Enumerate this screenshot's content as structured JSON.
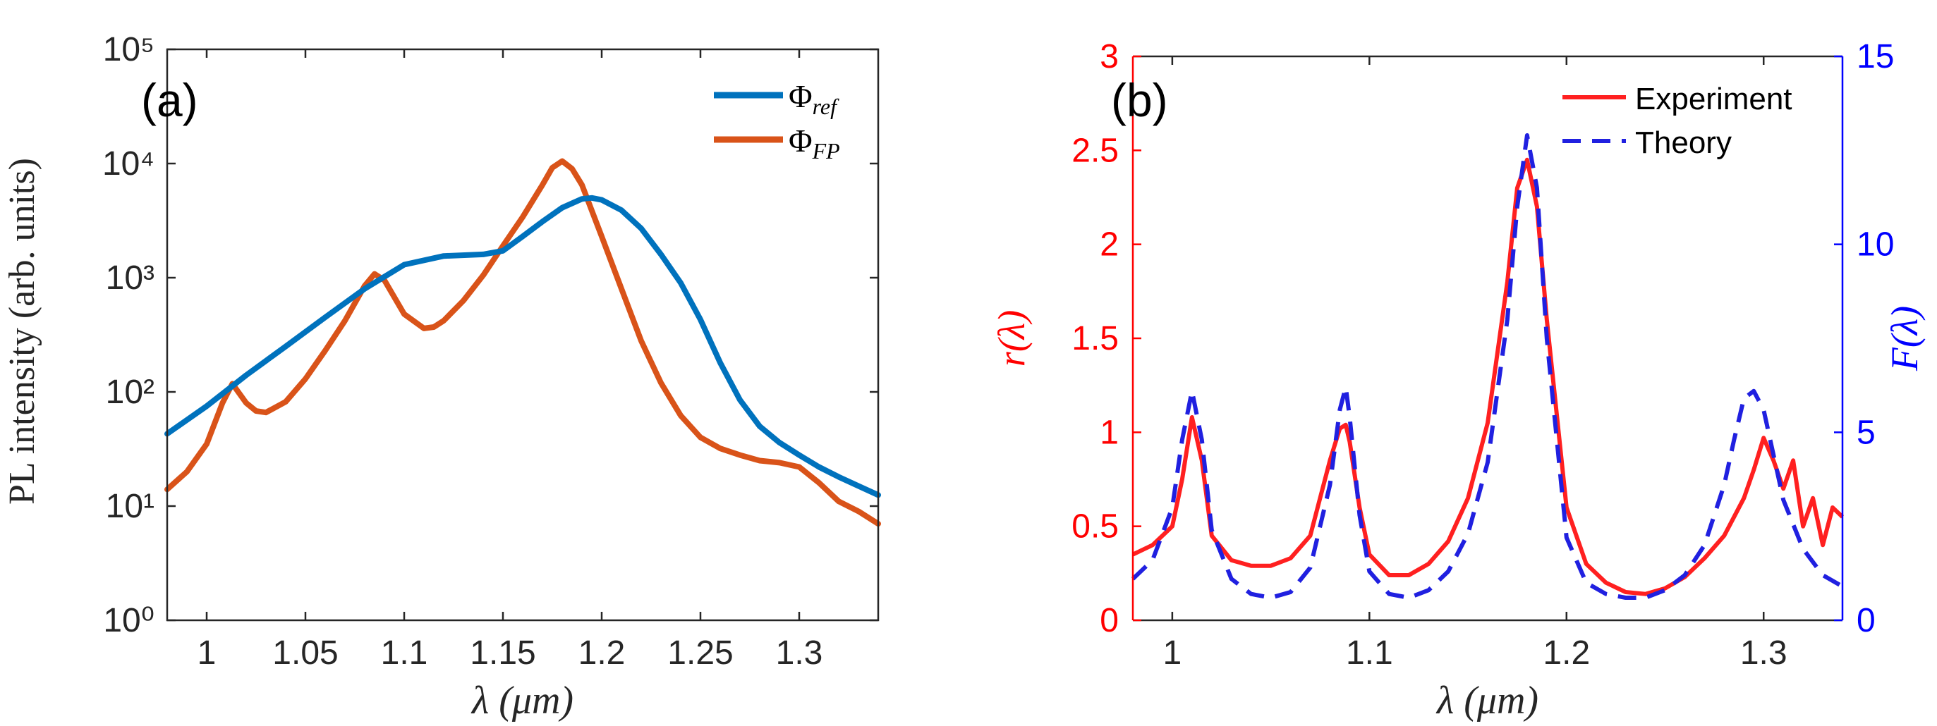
{
  "chart_data": [
    {
      "type": "line",
      "yscale": "log",
      "panel_label": "(a)",
      "xlabel": "λ (μm)",
      "ylabel": "PL intensity (arb. units)",
      "xlim": [
        0.98,
        1.34
      ],
      "ylim": [
        1,
        100000
      ],
      "xticks": [
        1,
        1.05,
        1.1,
        1.15,
        1.2,
        1.25,
        1.3
      ],
      "xtick_labels": [
        "1",
        "1.05",
        "1.1",
        "1.15",
        "1.2",
        "1.25",
        "1.3"
      ],
      "ytick_labels": [
        "10⁰",
        "10¹",
        "10²",
        "10³",
        "10⁴",
        "10⁵"
      ],
      "ytick_values": [
        1,
        10,
        100,
        1000,
        10000,
        100000
      ],
      "legend_position": "top-right",
      "series": [
        {
          "name": "Φref",
          "legend_main": "Φ",
          "legend_sub": "ref",
          "color": "#0072BD",
          "x": [
            0.98,
            1.0,
            1.02,
            1.04,
            1.06,
            1.08,
            1.1,
            1.12,
            1.14,
            1.15,
            1.16,
            1.17,
            1.18,
            1.19,
            1.195,
            1.2,
            1.21,
            1.22,
            1.23,
            1.24,
            1.25,
            1.26,
            1.27,
            1.28,
            1.29,
            1.3,
            1.31,
            1.32,
            1.33,
            1.34
          ],
          "values": [
            43,
            75,
            140,
            250,
            450,
            800,
            1300,
            1550,
            1600,
            1720,
            2300,
            3100,
            4100,
            4900,
            5000,
            4800,
            3900,
            2700,
            1600,
            900,
            430,
            180,
            85,
            50,
            36,
            28,
            22,
            18,
            15,
            12.5
          ]
        },
        {
          "name": "ΦFP",
          "legend_main": "Φ",
          "legend_sub": "FP",
          "color": "#D95319",
          "x": [
            0.98,
            0.99,
            1.0,
            1.008,
            1.013,
            1.02,
            1.025,
            1.03,
            1.04,
            1.05,
            1.06,
            1.07,
            1.08,
            1.085,
            1.09,
            1.1,
            1.11,
            1.115,
            1.12,
            1.13,
            1.14,
            1.15,
            1.16,
            1.17,
            1.175,
            1.18,
            1.185,
            1.19,
            1.2,
            1.21,
            1.22,
            1.23,
            1.24,
            1.25,
            1.26,
            1.27,
            1.28,
            1.29,
            1.3,
            1.31,
            1.32,
            1.33,
            1.34
          ],
          "values": [
            14,
            20,
            35,
            80,
            118,
            80,
            68,
            66,
            82,
            130,
            230,
            420,
            850,
            1080,
            950,
            480,
            360,
            370,
            420,
            630,
            1050,
            1900,
            3400,
            6500,
            9200,
            10500,
            9000,
            6500,
            2300,
            800,
            280,
            120,
            62,
            40,
            32,
            28,
            25,
            24,
            22,
            16,
            11,
            9,
            7
          ]
        }
      ]
    },
    {
      "type": "line",
      "panel_label": "(b)",
      "xlabel": "λ (μm)",
      "ylabel_left": "r(λ)",
      "ylabel_right": "F(λ)",
      "xlim": [
        0.98,
        1.34
      ],
      "ylim_left": [
        0,
        3
      ],
      "ylim_right": [
        0,
        15
      ],
      "xticks": [
        1,
        1.1,
        1.2,
        1.3
      ],
      "xtick_labels": [
        "1",
        "1.1",
        "1.2",
        "1.3"
      ],
      "yticks_left": [
        0,
        0.5,
        1,
        1.5,
        2,
        2.5,
        3
      ],
      "ytick_labels_left": [
        "0",
        "0.5",
        "1",
        "1.5",
        "2",
        "2.5",
        "3"
      ],
      "yticks_right": [
        0,
        5,
        10,
        15
      ],
      "ytick_labels_right": [
        "0",
        "5",
        "10",
        "15"
      ],
      "left_axis_color": "#FF0000",
      "right_axis_color": "#0000FF",
      "legend_position": "top-right",
      "series": [
        {
          "name": "Experiment",
          "axis": "left",
          "style": "solid",
          "color": "#FF2020",
          "x": [
            0.98,
            0.99,
            1.0,
            1.005,
            1.01,
            1.015,
            1.02,
            1.03,
            1.04,
            1.05,
            1.06,
            1.07,
            1.08,
            1.085,
            1.088,
            1.09,
            1.095,
            1.1,
            1.11,
            1.12,
            1.13,
            1.14,
            1.15,
            1.16,
            1.17,
            1.175,
            1.18,
            1.185,
            1.19,
            1.2,
            1.21,
            1.22,
            1.23,
            1.24,
            1.25,
            1.26,
            1.27,
            1.28,
            1.29,
            1.295,
            1.3,
            1.305,
            1.31,
            1.315,
            1.32,
            1.325,
            1.33,
            1.335,
            1.34
          ],
          "values": [
            0.35,
            0.4,
            0.5,
            0.75,
            1.08,
            0.85,
            0.45,
            0.32,
            0.29,
            0.29,
            0.33,
            0.45,
            0.85,
            1.02,
            1.04,
            0.95,
            0.6,
            0.35,
            0.24,
            0.24,
            0.3,
            0.42,
            0.65,
            1.05,
            1.8,
            2.3,
            2.45,
            2.2,
            1.6,
            0.6,
            0.3,
            0.2,
            0.15,
            0.14,
            0.17,
            0.23,
            0.33,
            0.45,
            0.65,
            0.8,
            0.97,
            0.85,
            0.7,
            0.85,
            0.5,
            0.65,
            0.4,
            0.6,
            0.55
          ]
        },
        {
          "name": "Theory",
          "axis": "right",
          "style": "dashed",
          "color": "#2020E0",
          "x": [
            0.98,
            0.99,
            1.0,
            1.005,
            1.01,
            1.015,
            1.02,
            1.03,
            1.04,
            1.05,
            1.06,
            1.07,
            1.08,
            1.085,
            1.088,
            1.09,
            1.095,
            1.1,
            1.11,
            1.12,
            1.13,
            1.14,
            1.15,
            1.16,
            1.17,
            1.175,
            1.18,
            1.185,
            1.19,
            1.2,
            1.21,
            1.22,
            1.23,
            1.24,
            1.25,
            1.26,
            1.27,
            1.28,
            1.285,
            1.29,
            1.295,
            1.3,
            1.31,
            1.32,
            1.33,
            1.34
          ],
          "values": [
            1.1,
            1.6,
            3.0,
            4.8,
            6.1,
            4.8,
            2.4,
            1.1,
            0.7,
            0.6,
            0.75,
            1.4,
            3.6,
            5.6,
            6.2,
            5.4,
            2.8,
            1.3,
            0.7,
            0.6,
            0.8,
            1.3,
            2.3,
            4.2,
            8.0,
            11.0,
            12.9,
            11.5,
            7.5,
            2.2,
            1.0,
            0.7,
            0.6,
            0.6,
            0.8,
            1.2,
            2.0,
            3.6,
            4.8,
            5.9,
            6.1,
            5.6,
            3.2,
            1.9,
            1.2,
            0.9
          ]
        }
      ]
    }
  ]
}
